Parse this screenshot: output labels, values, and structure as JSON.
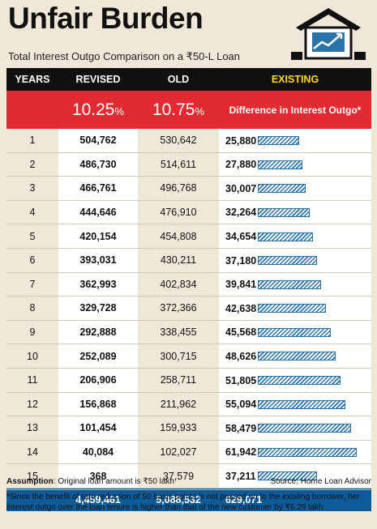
{
  "title": "Unfair Burden",
  "subtitle": "Total Interest Outgo Comparison on a ₹50-L Loan",
  "headers": {
    "years": "YEARS",
    "revised": "REVISED",
    "old": "OLD",
    "existing": "EXISTING"
  },
  "rates": {
    "revised": "10.25",
    "old": "10.75",
    "pct": "%",
    "difference_label": "Difference in Interest Outgo*"
  },
  "totals": {
    "revised": "4,459,461",
    "old": "5,088,532",
    "difference": "629,071"
  },
  "assumption_label": "Assumption",
  "assumption_text": ": Original loan amount is ₹50 lakh",
  "source": "Source: Home Loan Advisor",
  "footnote": "*Since the benefit of rate reduction of 50 basis points is not passed on to the existing borrower, her interest outgo over the loan tenure is higher than that of the new customer by ₹6.29 lakh",
  "colors": {
    "header_bg": "#111111",
    "rate_row": "#e22a32",
    "total_row": "#0d5b99",
    "bar": "#2a73a8",
    "existing_header": "#ffd92e"
  },
  "icons": [
    "house-chart-icon"
  ],
  "chart_data": {
    "type": "table",
    "title": "Unfair Burden",
    "subtitle": "Total Interest Outgo Comparison on a ₹50-L Loan",
    "columns": [
      "YEARS",
      "REVISED",
      "OLD",
      "EXISTING"
    ],
    "rows": [
      {
        "year": "1",
        "revised": "504,762",
        "old": "530,642",
        "difference": "25,880",
        "diff_value": 25880
      },
      {
        "year": "2",
        "revised": "486,730",
        "old": "514,611",
        "difference": "27,880",
        "diff_value": 27880
      },
      {
        "year": "3",
        "revised": "466,761",
        "old": "496,768",
        "difference": "30,007",
        "diff_value": 30007
      },
      {
        "year": "4",
        "revised": "444,646",
        "old": "476,910",
        "difference": "32,264",
        "diff_value": 32264
      },
      {
        "year": "5",
        "revised": "420,154",
        "old": "454,808",
        "difference": "34,654",
        "diff_value": 34654
      },
      {
        "year": "6",
        "revised": "393,031",
        "old": "430,211",
        "difference": "37,180",
        "diff_value": 37180
      },
      {
        "year": "7",
        "revised": "362,993",
        "old": "402,834",
        "difference": "39,841",
        "diff_value": 39841
      },
      {
        "year": "8",
        "revised": "329,728",
        "old": "372,366",
        "difference": "42,638",
        "diff_value": 42638
      },
      {
        "year": "9",
        "revised": "292,888",
        "old": "338,455",
        "difference": "45,568",
        "diff_value": 45568
      },
      {
        "year": "10",
        "revised": "252,089",
        "old": "300,715",
        "difference": "48,626",
        "diff_value": 48626
      },
      {
        "year": "11",
        "revised": "206,906",
        "old": "258,711",
        "difference": "51,805",
        "diff_value": 51805
      },
      {
        "year": "12",
        "revised": "156,868",
        "old": "211,962",
        "difference": "55,094",
        "diff_value": 55094
      },
      {
        "year": "13",
        "revised": "101,454",
        "old": "159,933",
        "difference": "58,479",
        "diff_value": 58479
      },
      {
        "year": "14",
        "revised": "40,084",
        "old": "102,027",
        "difference": "61,942",
        "diff_value": 61942
      },
      {
        "year": "15",
        "revised": "368",
        "old": "37,579",
        "difference": "37,211",
        "diff_value": 37211
      }
    ],
    "bar_max": 65000
  }
}
